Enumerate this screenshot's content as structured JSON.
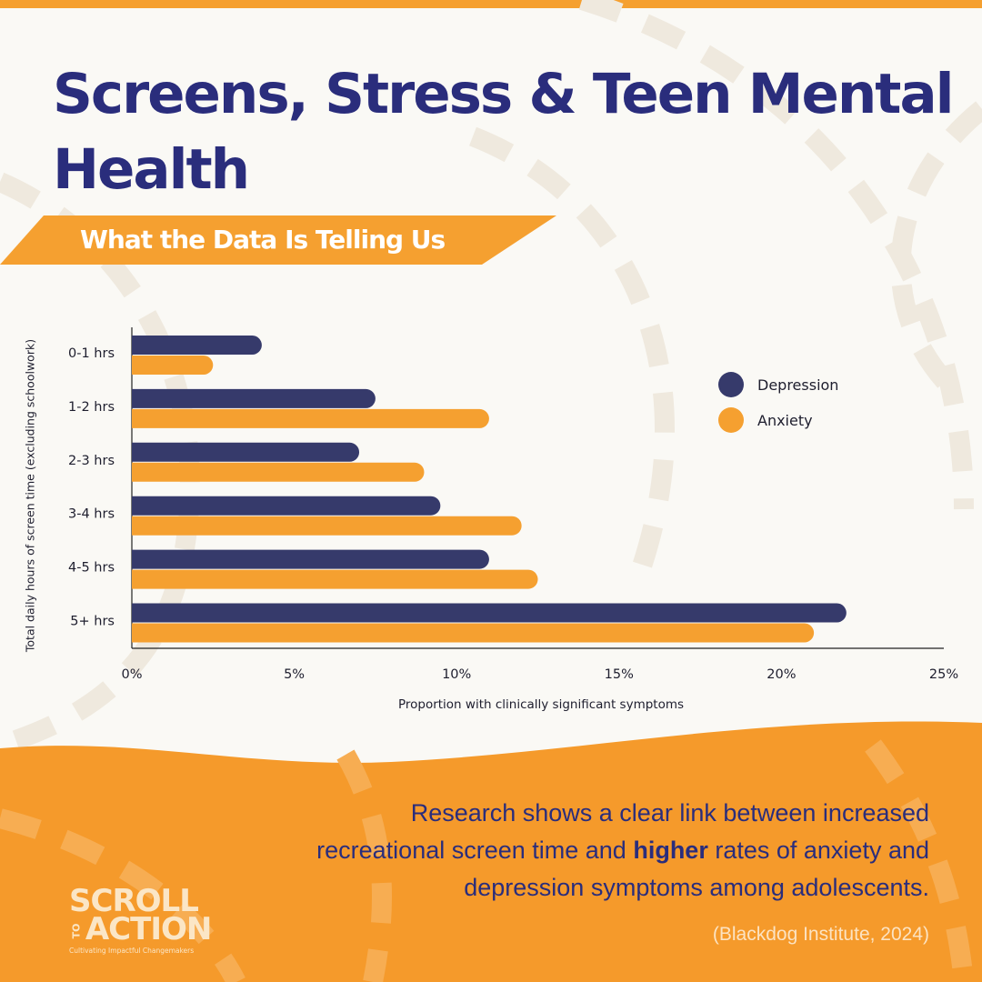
{
  "header": {
    "title": "Screens, Stress & Teen Mental Health",
    "subtitle": "What the Data Is Telling Us"
  },
  "colors": {
    "navy": "#2a2d7c",
    "orange": "#f5a030",
    "depression_bar": "#363a6b",
    "background": "#faf9f5"
  },
  "chart_data": {
    "type": "bar",
    "orientation": "horizontal",
    "categories": [
      "0-1 hrs",
      "1-2 hrs",
      "2-3 hrs",
      "3-4 hrs",
      "4-5 hrs",
      "5+ hrs"
    ],
    "series": [
      {
        "name": "Depression",
        "color": "#363a6b",
        "values": [
          4,
          7.5,
          7,
          9.5,
          11,
          22
        ]
      },
      {
        "name": "Anxiety",
        "color": "#f5a030",
        "values": [
          2.5,
          11,
          9,
          12,
          12.5,
          21
        ]
      }
    ],
    "xlabel": "Proportion with clinically significant symptoms",
    "ylabel": "Total daily hours of screen time (excluding schoolwork)",
    "xlim": [
      0,
      25
    ],
    "xticks": [
      "0%",
      "5%",
      "10%",
      "15%",
      "20%",
      "25%"
    ],
    "grid": false,
    "legend_position": "top-right"
  },
  "footer": {
    "text_before": "Research shows a clear link between increased recreational screen time and ",
    "text_emphasis": "higher",
    "text_after": " rates of anxiety and depression symptoms among adolescents.",
    "source": "(Blackdog Institute, 2024)"
  },
  "logo": {
    "line1": "SCROLL",
    "small": "TO",
    "line2": "ACTION",
    "tagline": "Cultivating Impactful Changemakers"
  }
}
